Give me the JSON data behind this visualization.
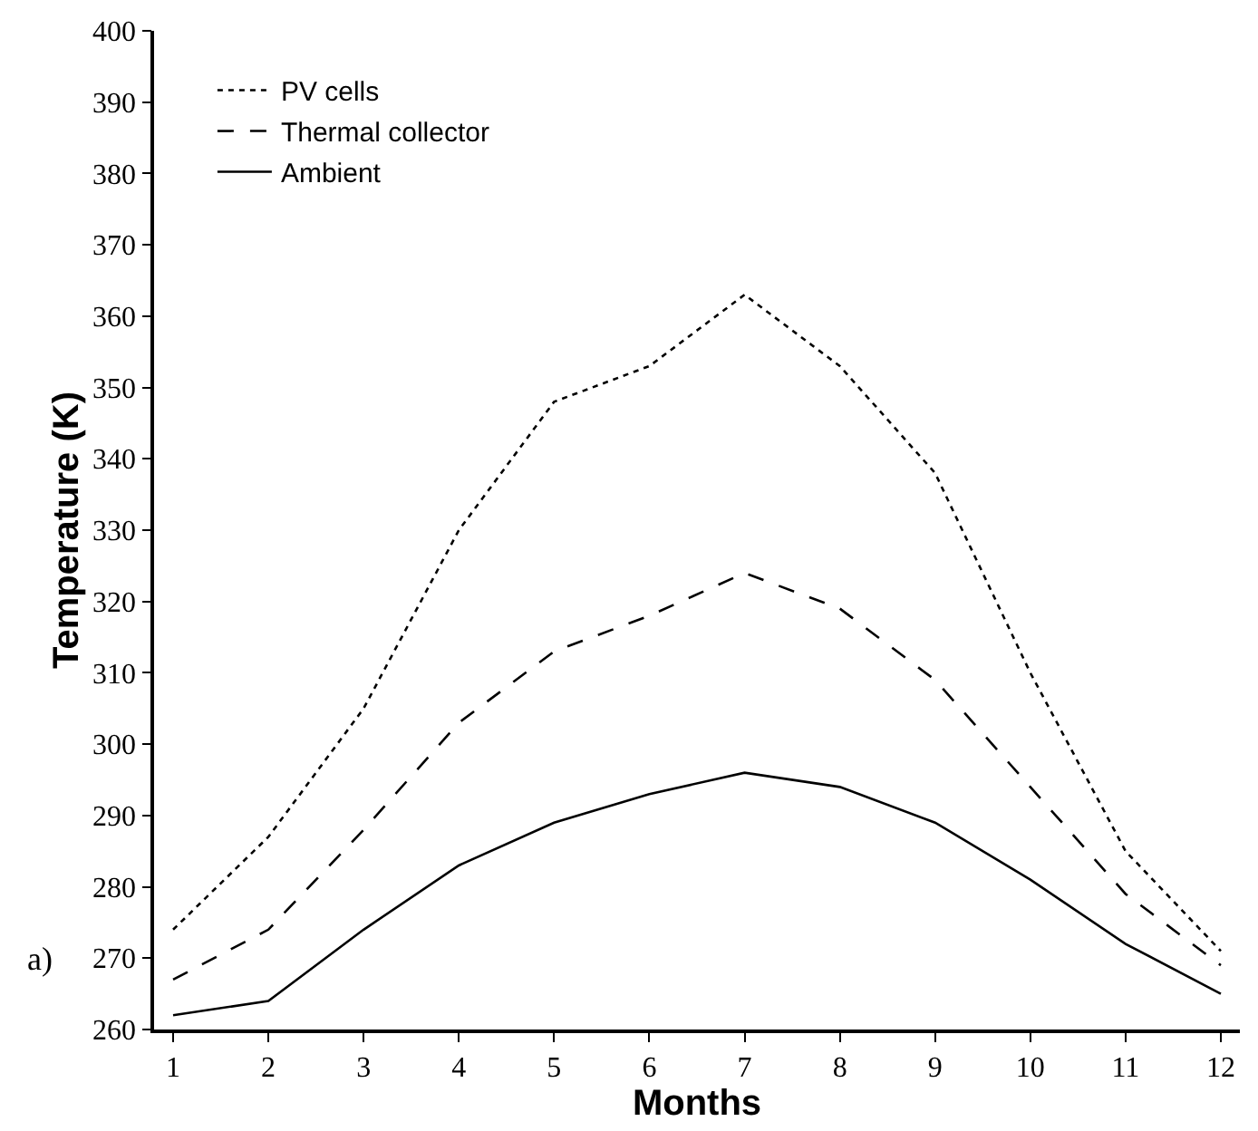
{
  "chart_data": {
    "type": "line",
    "xlabel": "Months",
    "ylabel": "Temperature (K)",
    "x": [
      1,
      2,
      3,
      4,
      5,
      6,
      7,
      8,
      9,
      10,
      11,
      12
    ],
    "series": [
      {
        "name": "PV cells",
        "color": "#000000",
        "line_style": "dotted",
        "values": [
          274,
          287,
          305,
          330,
          348,
          353,
          363,
          353,
          338,
          310,
          285,
          271
        ]
      },
      {
        "name": "Thermal collector",
        "color": "#000000",
        "line_style": "dashed",
        "values": [
          267,
          274,
          288,
          303,
          313,
          318,
          324,
          319,
          309,
          294,
          279,
          269
        ]
      },
      {
        "name": "Ambient",
        "color": "#000000",
        "line_style": "solid",
        "values": [
          262,
          264,
          274,
          283,
          289,
          293,
          296,
          294,
          289,
          281,
          272,
          265
        ]
      }
    ],
    "xlim": [
      0.8,
      12.2
    ],
    "xticks": [
      1,
      2,
      3,
      4,
      5,
      6,
      7,
      8,
      9,
      10,
      11,
      12
    ],
    "ylim": [
      260,
      400
    ],
    "yticks": [
      260,
      270,
      280,
      290,
      300,
      310,
      320,
      330,
      340,
      350,
      360,
      370,
      380,
      390,
      400
    ],
    "legend": "top left",
    "marker": "none",
    "annotations": [
      "a)"
    ]
  }
}
